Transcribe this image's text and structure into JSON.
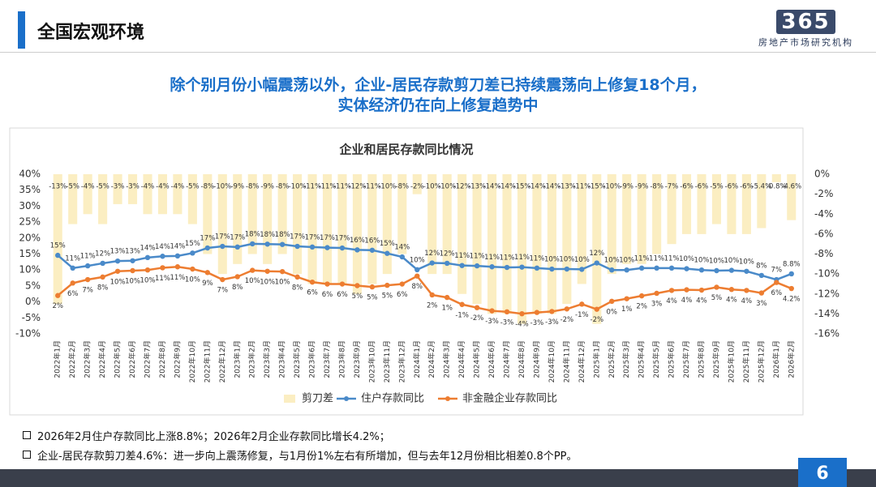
{
  "header": {
    "title": "全国宏观环境"
  },
  "logo": {
    "number": "365",
    "text": "房地产市场研究机构"
  },
  "headline": [
    "除个别月份小幅震荡以外，企业-居民存款剪刀差已持续震荡向上修复18个月，",
    "实体经济仍在向上修复趋势中"
  ],
  "chart_data": {
    "type": "combo",
    "title": "企业和居民存款同比情况",
    "categories": [
      "2022年1月",
      "2022年2月",
      "2022年3月",
      "2022年4月",
      "2022年5月",
      "2022年6月",
      "2022年7月",
      "2022年8月",
      "2022年9月",
      "2022年10月",
      "2022年11月",
      "2022年12月",
      "2023年1月",
      "2023年2月",
      "2023年3月",
      "2023年4月",
      "2023年5月",
      "2023年6月",
      "2023年7月",
      "2023年8月",
      "2023年9月",
      "2023年10月",
      "2023年11月",
      "2023年12月",
      "2024年1月",
      "2024年2月",
      "2024年3月",
      "2024年4月",
      "2024年5月",
      "2024年6月",
      "2024年7月",
      "2024年8月",
      "2024年9月",
      "2024年10月",
      "2024年11月",
      "2024年12月",
      "2025年1月",
      "2025年2月",
      "2025年3月",
      "2025年4月",
      "2025年5月",
      "2025年6月",
      "2025年7月",
      "2025年8月",
      "2025年9月",
      "2025年10月",
      "2025年11月",
      "2025年12月",
      "2026年1月",
      "2026年2月"
    ],
    "series": [
      {
        "name": "剪刀差",
        "type": "bar",
        "axis": "y2",
        "color": "#fbeec2",
        "values": [
          -13,
          -5,
          -4,
          -5,
          -3,
          -3,
          -4,
          -4,
          -4,
          -5,
          -8,
          -10,
          -9,
          -8,
          -9,
          -8,
          -10,
          -11,
          -11,
          -11,
          -12,
          -11,
          -10,
          -8,
          -2,
          -10,
          -10,
          -12,
          -13,
          -14,
          -14,
          -15,
          -14,
          -14,
          -13,
          -11,
          -15,
          -10,
          -9,
          -9,
          -8,
          -7,
          -6,
          -6,
          -5,
          -6,
          -6,
          -5.4,
          -0.8,
          -4.6
        ],
        "value_labels": [
          "-13%",
          "-5%",
          "-4%",
          "-5%",
          "-3%",
          "-3%",
          "-4%",
          "-4%",
          "-4%",
          "-5%",
          "-8%",
          "-10%",
          "-9%",
          "-8%",
          "-9%",
          "-8%",
          "-10%",
          "-11%",
          "-11%",
          "-11%",
          "-12%",
          "-11%",
          "-10%",
          "-8%",
          "-2%",
          "-10%",
          "-10%",
          "-12%",
          "-13%",
          "-14%",
          "-14%",
          "-15%",
          "-14%",
          "-14%",
          "-13%",
          "-11%",
          "-15%",
          "-10%",
          "-9%",
          "-9%",
          "-8%",
          "-7%",
          "-6%",
          "-6%",
          "-5%",
          "-6%",
          "-6%",
          "-5.4%",
          "-0.8%",
          "-4.6%"
        ]
      },
      {
        "name": "住户存款同比",
        "type": "line",
        "color": "#4a8ac9",
        "values": [
          14.6,
          10.6,
          11.3,
          12.1,
          12.8,
          12.9,
          13.9,
          14.3,
          14.4,
          15.3,
          16.9,
          17.4,
          17.2,
          18.2,
          18.1,
          18.0,
          17.4,
          17.2,
          17.0,
          16.9,
          16.3,
          16.2,
          15.2,
          14.1,
          10.1,
          12.2,
          12.1,
          11.4,
          11.3,
          11.0,
          10.8,
          10.9,
          10.6,
          10.3,
          10.3,
          10.2,
          12.2,
          10.0,
          10.0,
          10.6,
          10.6,
          10.6,
          10.4,
          10.0,
          9.8,
          9.9,
          9.6,
          8.3,
          7.0,
          8.8
        ],
        "value_labels": [
          "15%",
          "11%",
          "11%",
          "12%",
          "13%",
          "13%",
          "14%",
          "14%",
          "14%",
          "15%",
          "17%",
          "17%",
          "17%",
          "18%",
          "18%",
          "18%",
          "17%",
          "17%",
          "17%",
          "17%",
          "16%",
          "16%",
          "15%",
          "14%",
          "10%",
          "12%",
          "12%",
          "11%",
          "11%",
          "11%",
          "11%",
          "11%",
          "11%",
          "10%",
          "10%",
          "10%",
          "12%",
          "10%",
          "10%",
          "11%",
          "11%",
          "11%",
          "10%",
          "10%",
          "10%",
          "10%",
          "10%",
          "8%",
          "7%",
          "8.8%"
        ]
      },
      {
        "name": "非金融企业存款同比",
        "type": "line",
        "color": "#ed7d31",
        "values": [
          2.0,
          5.9,
          7.0,
          7.8,
          9.6,
          9.8,
          10.0,
          10.7,
          11.0,
          10.3,
          9.2,
          7.0,
          7.9,
          9.9,
          9.6,
          9.5,
          7.8,
          6.2,
          5.6,
          5.6,
          5.1,
          4.7,
          5.2,
          5.6,
          8.1,
          2.2,
          1.4,
          -0.8,
          -1.8,
          -2.8,
          -3.1,
          -3.7,
          -3.3,
          -3.0,
          -2.2,
          -0.7,
          -2.3,
          0.2,
          1.0,
          1.9,
          2.7,
          3.6,
          3.8,
          3.7,
          4.6,
          3.9,
          3.6,
          2.8,
          6.1,
          4.2
        ],
        "value_labels": [
          "2%",
          "6%",
          "7%",
          "8%",
          "10%",
          "10%",
          "10%",
          "11%",
          "11%",
          "10%",
          "9%",
          "7%",
          "8%",
          "10%",
          "10%",
          "10%",
          "8%",
          "6%",
          "6%",
          "6%",
          "5%",
          "5%",
          "5%",
          "6%",
          "8%",
          "2%",
          "1%",
          "-1%",
          "-2%",
          "-3%",
          "-3%",
          "-4%",
          "-3%",
          "-3%",
          "-2%",
          "-1%",
          "-2%",
          "0%",
          "1%",
          "2%",
          "3%",
          "4%",
          "4%",
          "4%",
          "5%",
          "4%",
          "4%",
          "3%",
          "6%",
          "4.2%"
        ]
      }
    ],
    "ylim": [
      -10,
      40
    ],
    "yticks": [
      {
        "value": -10,
        "label": "-10%"
      },
      {
        "value": -5,
        "label": "-5%"
      },
      {
        "value": 0,
        "label": "0%"
      },
      {
        "value": 5,
        "label": "5%"
      },
      {
        "value": 10,
        "label": "10%"
      },
      {
        "value": 15,
        "label": "15%"
      },
      {
        "value": 20,
        "label": "20%"
      },
      {
        "value": 25,
        "label": "25%"
      },
      {
        "value": 30,
        "label": "30%"
      },
      {
        "value": 35,
        "label": "35%"
      },
      {
        "value": 40,
        "label": "40%"
      }
    ],
    "y2lim": [
      -16,
      0
    ],
    "y2ticks": [
      {
        "value": -16,
        "label": "-16%"
      },
      {
        "value": -14,
        "label": "-14%"
      },
      {
        "value": -12,
        "label": "-12%"
      },
      {
        "value": -10,
        "label": "-10%"
      },
      {
        "value": -8,
        "label": "-8%"
      },
      {
        "value": -6,
        "label": "-6%"
      },
      {
        "value": -4,
        "label": "-4%"
      },
      {
        "value": -2,
        "label": "-2%"
      },
      {
        "value": 0,
        "label": "0%"
      }
    ],
    "legend": "bottom"
  },
  "notes": [
    "2026年2月住户存款同比上涨8.8%；2026年2月企业存款同比增长4.2%；",
    "企业-居民存款剪刀差4.6%：进一步向上震荡修复，与1月份1%左右有所增加，但与去年12月份相比相差0.8个PP。"
  ],
  "page_number": "6"
}
